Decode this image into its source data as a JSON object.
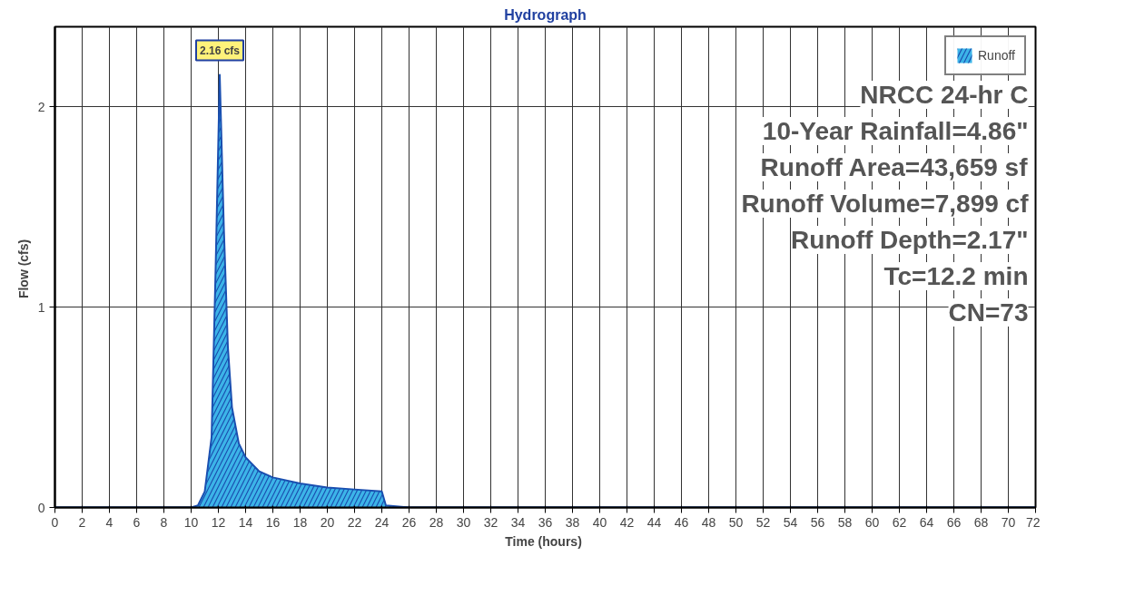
{
  "chart_data": {
    "type": "area",
    "title": "Hydrograph",
    "xlabel": "Time  (hours)",
    "ylabel": "Flow  (cfs)",
    "x": [
      0,
      2,
      4,
      6,
      8,
      10,
      10.5,
      11,
      11.5,
      11.8,
      12.1,
      12.4,
      12.7,
      13,
      13.5,
      14,
      15,
      16,
      18,
      20,
      22,
      24,
      24.3,
      26,
      30,
      40,
      50,
      60,
      72
    ],
    "series": [
      {
        "name": "Runoff",
        "color": "#3cb4e8",
        "values": [
          0,
          0,
          0,
          0,
          0,
          0,
          0.01,
          0.08,
          0.35,
          1.2,
          2.16,
          1.4,
          0.8,
          0.5,
          0.32,
          0.25,
          0.18,
          0.15,
          0.12,
          0.1,
          0.09,
          0.08,
          0.01,
          0,
          0,
          0,
          0,
          0,
          0
        ]
      }
    ],
    "xlim": [
      0,
      72
    ],
    "xticks": [
      0,
      2,
      4,
      6,
      8,
      10,
      12,
      14,
      16,
      18,
      20,
      22,
      24,
      26,
      28,
      30,
      32,
      34,
      36,
      38,
      40,
      42,
      44,
      46,
      48,
      50,
      52,
      54,
      56,
      58,
      60,
      62,
      64,
      66,
      68,
      70,
      72
    ],
    "ylim": [
      0,
      2.4
    ],
    "yticks": [
      0,
      1,
      2
    ],
    "grid": true,
    "legend": "top right",
    "annotations": [
      {
        "text": "2.16 cfs",
        "x": 12.1,
        "y": 2.16
      },
      "NRCC 24-hr C",
      "10-Year Rainfall=4.86\"",
      "Runoff Area=43,659 sf",
      "Runoff Volume=7,899 cf",
      "Runoff Depth=2.17\"",
      "Tc=12.2 min",
      "CN=73"
    ]
  }
}
